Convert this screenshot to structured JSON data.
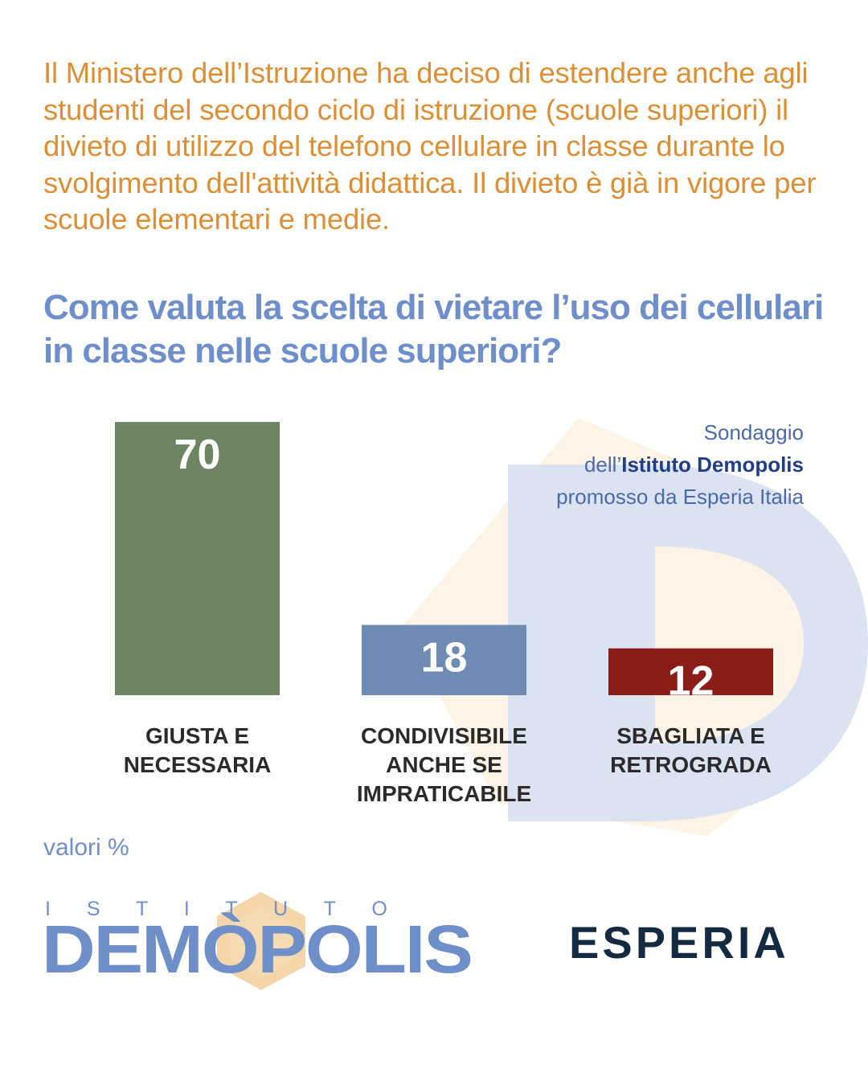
{
  "intro_text": "Il Ministero dell’Istruzione ha deciso di estendere anche agli studenti del secondo ciclo di istruzione (scuole superiori) il divieto di utilizzo del telefono cellulare in classe durante lo svolgimento dell'attività didattica. Il divieto è già in vigore per scuole elementari e medie.",
  "question": "Come valuta la scelta di vietare l’uso dei cellulari in classe nelle scuole superiori?",
  "source": {
    "line1": "Sondaggio",
    "line2_prefix": "dell’",
    "line2_org": "Istituto Demopolis",
    "line3": "promosso da Esperia Italia"
  },
  "chart_data": {
    "type": "bar",
    "categories": [
      [
        "GIUSTA E",
        "NECESSARIA"
      ],
      [
        "CONDIVISIBILE",
        "ANCHE SE",
        "IMPRATICABILE"
      ],
      [
        "SBAGLIATA E",
        "RETROGRADA"
      ]
    ],
    "values": [
      70,
      18,
      12
    ],
    "value_labels": [
      "70",
      "18",
      "12"
    ],
    "colors": [
      "#6d8563",
      "#6e8cb3",
      "#8b1c18"
    ],
    "unit_note": "valori %",
    "ylim": [
      0,
      70
    ]
  },
  "logos": {
    "demopolis_top": "I S T I T U T O",
    "demopolis_main": "DEMÒPOLIS",
    "esperia": "ESPERIA"
  }
}
